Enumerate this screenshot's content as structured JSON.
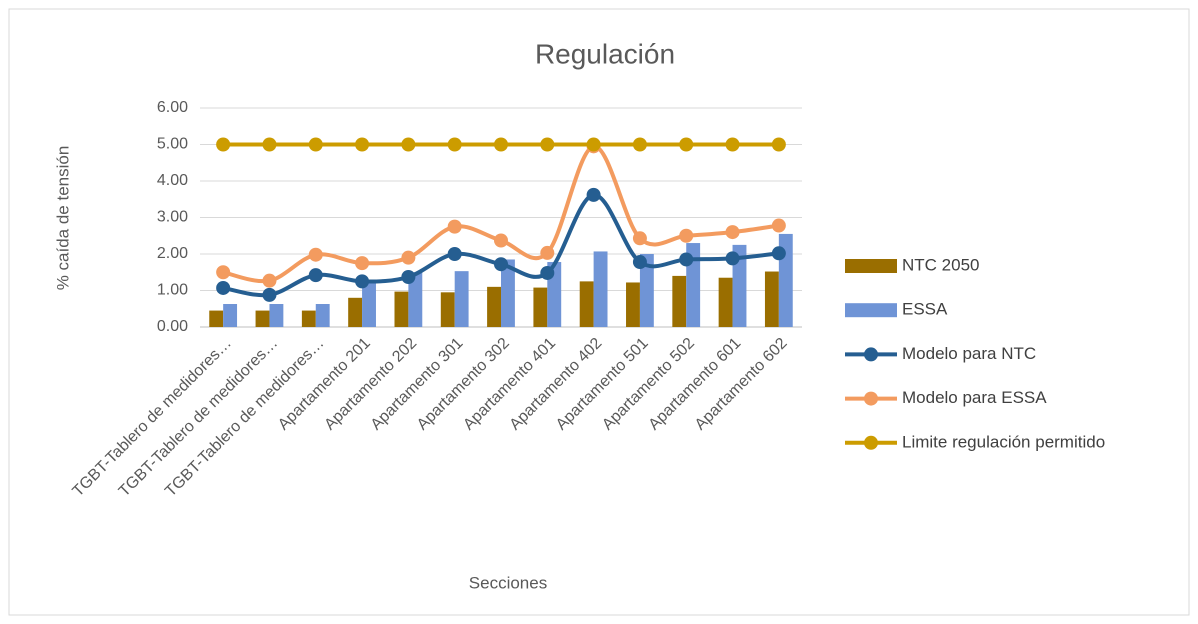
{
  "chart_data": {
    "type": "bar-line",
    "title": "Regulación",
    "xlabel": "Secciones",
    "ylabel": "% caída de tensión",
    "categories": [
      "TGBT-Tablero de medidores…",
      "TGBT-Tablero de medidores…",
      "TGBT-Tablero de medidores…",
      "Apartamento 201",
      "Apartamento 202",
      "Apartamento 301",
      "Apartamento 302",
      "Apartamento 401",
      "Apartamento 402",
      "Apartamento 501",
      "Apartamento 502",
      "Apartamento 601",
      "Apartamento 602"
    ],
    "series": [
      {
        "name": "NTC 2050",
        "kind": "bar",
        "color": "#9a6e00",
        "values": [
          0.45,
          0.45,
          0.45,
          0.8,
          0.97,
          0.95,
          1.1,
          1.08,
          1.25,
          1.22,
          1.4,
          1.35,
          1.52
        ]
      },
      {
        "name": "ESSA",
        "kind": "bar",
        "color": "#6f94d6",
        "values": [
          0.63,
          0.63,
          0.63,
          1.25,
          1.5,
          1.53,
          1.85,
          1.78,
          2.07,
          2.0,
          2.3,
          2.25,
          2.55
        ]
      },
      {
        "name": "Modelo para NTC",
        "kind": "line",
        "color": "#255e91",
        "values": [
          1.07,
          0.88,
          1.42,
          1.25,
          1.37,
          2.0,
          1.72,
          1.48,
          3.62,
          1.78,
          1.85,
          1.88,
          2.02
        ]
      },
      {
        "name": "Modelo para ESSA",
        "kind": "line",
        "color": "#f39b5f",
        "values": [
          1.5,
          1.27,
          1.98,
          1.75,
          1.9,
          2.75,
          2.37,
          2.03,
          4.95,
          2.43,
          2.5,
          2.6,
          2.78
        ]
      },
      {
        "name": "Limite regulación permitido",
        "kind": "line",
        "color": "#cc9c00",
        "values": [
          5,
          5,
          5,
          5,
          5,
          5,
          5,
          5,
          5,
          5,
          5,
          5,
          5
        ]
      }
    ],
    "ylim": [
      0,
      6
    ],
    "yticks": [
      {
        "value": 0,
        "label": "0.00"
      },
      {
        "value": 1,
        "label": "1.00"
      },
      {
        "value": 2,
        "label": "2.00"
      },
      {
        "value": 3,
        "label": "3.00"
      },
      {
        "value": 4,
        "label": "4.00"
      },
      {
        "value": 5,
        "label": "5.00"
      },
      {
        "value": 6,
        "label": "6.00"
      }
    ],
    "grid": true,
    "smooth": true,
    "legend": "right"
  }
}
